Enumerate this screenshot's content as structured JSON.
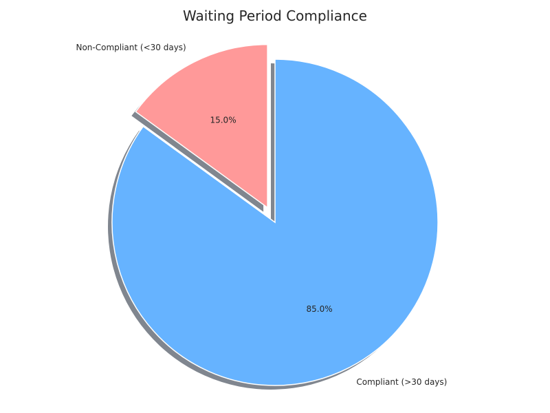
{
  "chart_data": {
    "type": "pie",
    "title": "Waiting Period Compliance",
    "categories": [
      "Compliant (>30 days)",
      "Non-Compliant (<30 days)"
    ],
    "values": [
      85.0,
      15.0
    ],
    "percent_labels": [
      "85.0%",
      "15.0%"
    ],
    "colors": [
      "#66b3ff",
      "#ff9999"
    ],
    "exploded": [
      false,
      true
    ],
    "start_angle_deg": 90,
    "shadow": true
  }
}
